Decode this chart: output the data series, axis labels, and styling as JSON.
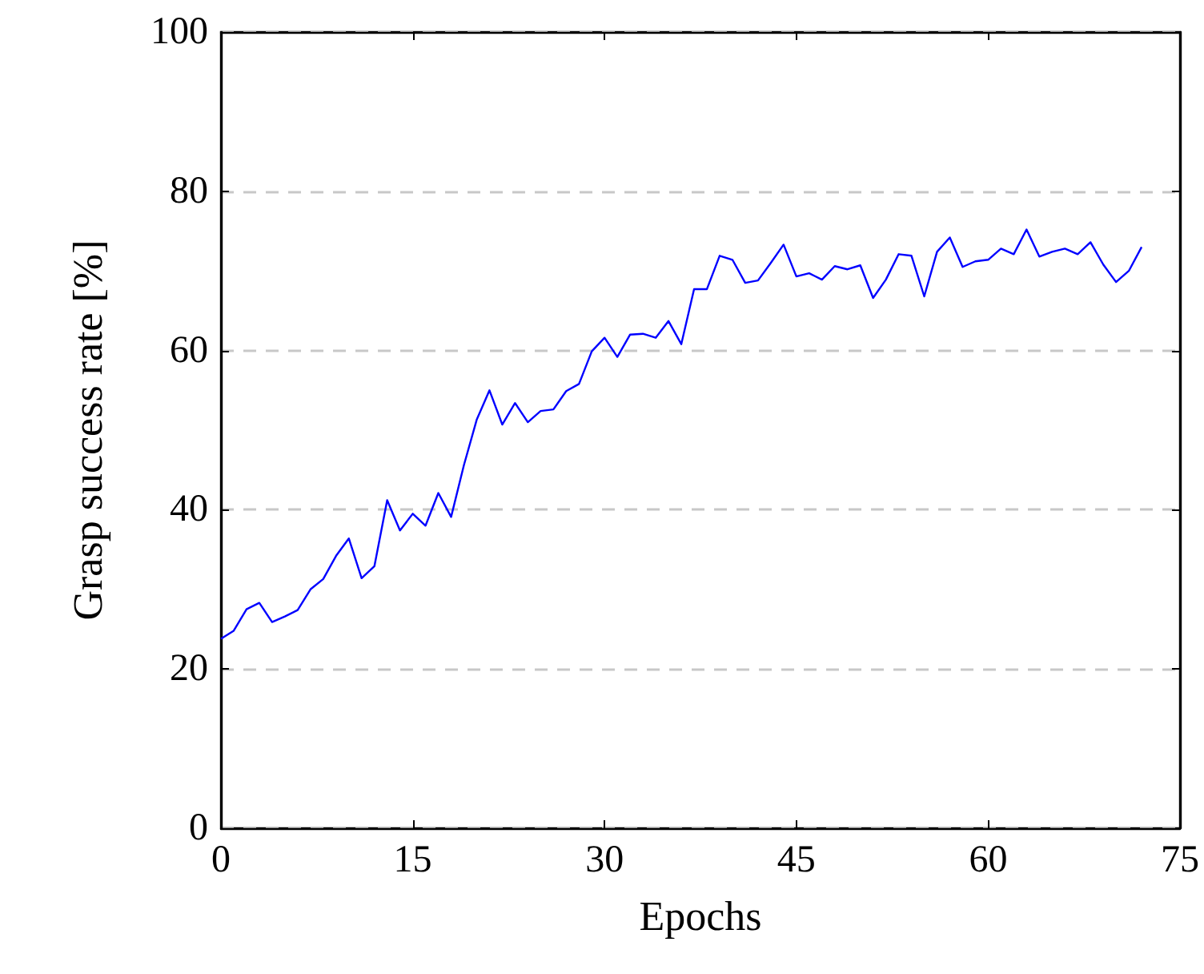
{
  "chart_data": {
    "type": "line",
    "xlabel": "Epochs",
    "ylabel": "Grasp success rate [%]",
    "x": [
      0,
      1,
      2,
      3,
      4,
      5,
      6,
      7,
      8,
      9,
      10,
      11,
      12,
      13,
      14,
      15,
      16,
      17,
      18,
      19,
      20,
      21,
      22,
      23,
      24,
      25,
      26,
      27,
      28,
      29,
      30,
      31,
      32,
      33,
      34,
      35,
      36,
      37,
      38,
      39,
      40,
      41,
      42,
      43,
      44,
      45,
      46,
      47,
      48,
      49,
      50,
      51,
      52,
      53,
      54,
      55,
      56,
      57,
      58,
      59,
      60,
      61,
      62,
      63,
      64,
      65,
      66,
      67,
      68,
      69,
      70,
      71,
      72
    ],
    "series": [
      {
        "color": "#0000ff",
        "values": [
          23.8,
          24.8,
          27.5,
          28.3,
          25.9,
          26.6,
          27.4,
          30,
          31.3,
          34.2,
          36.4,
          31.4,
          32.9,
          41.2,
          37.4,
          39.5,
          38,
          42.1,
          39.1,
          45.6,
          51.3,
          55,
          50.7,
          53.4,
          51,
          52.4,
          52.6,
          54.9,
          55.8,
          59.9,
          61.6,
          59.2,
          62,
          62.1,
          61.6,
          63.7,
          60.8,
          67.7,
          67.7,
          71.9,
          71.4,
          68.5,
          68.8,
          71,
          73.3,
          69.3,
          69.7,
          68.9,
          70.6,
          70.2,
          70.7,
          66.6,
          68.9,
          72.1,
          71.9,
          66.8,
          72.4,
          74.2,
          70.5,
          71.2,
          71.4,
          72.8,
          72.1,
          75.2,
          71.8,
          72.4,
          72.8,
          72.1,
          73.6,
          70.8,
          68.6,
          70,
          73
        ]
      }
    ],
    "xlim": [
      0,
      75
    ],
    "xticks": [
      0,
      15,
      30,
      45,
      60,
      75
    ],
    "ylim": [
      0,
      100
    ],
    "yticks": [
      0,
      20,
      40,
      60,
      80,
      100
    ],
    "grid": "y",
    "marker": "none",
    "line_style": "solid"
  }
}
